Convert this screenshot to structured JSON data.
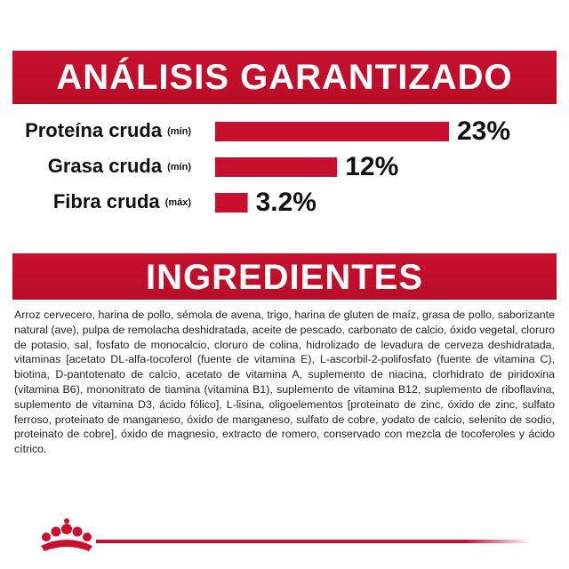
{
  "chart_data": {
    "type": "bar",
    "orientation": "horizontal",
    "title": "ANÁLISIS GARANTIZADO",
    "categories": [
      "Proteína cruda",
      "Grasa cruda",
      "Fibra cruda"
    ],
    "qualifiers": [
      "(mín)",
      "(mín)",
      "(máx)"
    ],
    "values": [
      23,
      12,
      3.2
    ],
    "value_labels": [
      "23%",
      "12%",
      "3.2%"
    ],
    "color": "#c8102e"
  },
  "ingredients": {
    "title": "INGREDIENTES",
    "text": "Arroz cervecero, harina de pollo, sémola de avena, trigo, harina de gluten de maíz, grasa de pollo, saborizante natural (ave), pulpa de remolacha deshidratada, aceite de pescado, carbonato de calcio, óxido vegetal, cloruro de potasio, sal, fosfato de monocalcio, cloruro de colina, hidrolizado de levadura de cerveza deshidratada, vitaminas [acetato DL-alfa-tocoferol (fuente de vitamina E), L-ascorbil-2-polifosfato (fuente de vitamina C), biotina, D-pantotenato de calcio, acetato de vitamina A, suplemento de niacina, clorhidrato de piridoxina (vitamina B6), mononitrato de tiamina (vitamina B1), suplemento de vitamina B12, suplemento de riboflavina, suplemento de vitamina D3, ácido fólico], L-lisina, oligoelementos [proteinato de zinc, óxido de zinc, sulfato ferroso, proteinato de manganeso, óxido de manganeso, sulfato de cobre, yodato de calcio, selenito de sodio, proteinato de cobre], óxido de magnesio, extracto de romero, conservado con mezcla de tocoferoles y ácido cítrico."
  }
}
